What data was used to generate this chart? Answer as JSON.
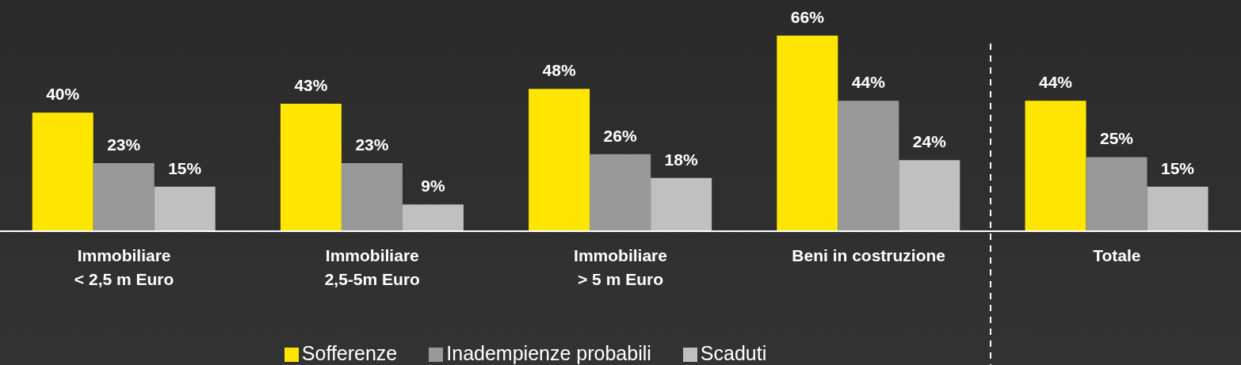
{
  "chart_data": {
    "type": "bar",
    "categories": [
      "Immobiliare\n< 2,5 m Euro",
      "Immobiliare\n2,5-5m Euro",
      "Immobiliare\n> 5 m Euro",
      "Beni in costruzione",
      "Totale"
    ],
    "series": [
      {
        "name": "Sofferenze",
        "color": "#ffe600",
        "values": [
          40,
          43,
          48,
          66,
          44
        ],
        "value_labels": [
          "40%",
          "43%",
          "48%",
          "66%",
          "44%"
        ]
      },
      {
        "name": "Inadempienze probabili",
        "color": "#999999",
        "values": [
          23,
          23,
          26,
          44,
          25
        ],
        "value_labels": [
          "23%",
          "23%",
          "26%",
          "44%",
          "25%"
        ]
      },
      {
        "name": "Scaduti",
        "color": "#c0c0c0",
        "values": [
          15,
          9,
          18,
          24,
          15
        ],
        "value_labels": [
          "15%",
          "9%",
          "18%",
          "24%",
          "15%"
        ]
      }
    ],
    "legend": "bottom",
    "grid": false
  }
}
